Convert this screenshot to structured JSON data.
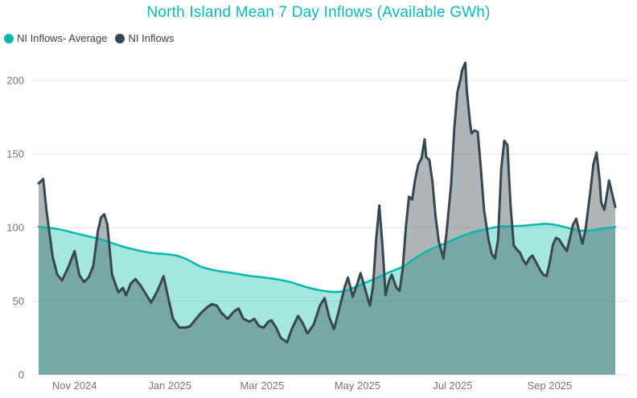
{
  "colors": {
    "title": "#12B6B9",
    "axis_label": "#767676",
    "gridline": "#E6E6E6",
    "legend_text": "#3F3F3F",
    "background": "#FFFFFF"
  },
  "chart_data": {
    "type": "area",
    "title": "North Island Mean 7 Day Inflows (Available GWh)",
    "xlabel": "",
    "ylabel": "",
    "x_unit": "days from chart start (mid-Oct 2024)",
    "x_span_days": 369,
    "ylim": [
      0,
      215
    ],
    "grid": "horizontal",
    "legend_position": "top-left",
    "y_ticks": [
      0,
      50,
      100,
      150,
      200
    ],
    "x_ticks": [
      {
        "label": "Nov 2024",
        "day": 23
      },
      {
        "label": "Jan 2025",
        "day": 84
      },
      {
        "label": "Mar 2025",
        "day": 143
      },
      {
        "label": "May 2025",
        "day": 204
      },
      {
        "label": "Jul 2025",
        "day": 265
      },
      {
        "label": "Sep 2025",
        "day": 327
      }
    ],
    "series": [
      {
        "name": "NI Inflows- Average",
        "color": "#01B8AA",
        "fill": "rgba(1,184,170,0.35)",
        "style": "smooth",
        "points": [
          [
            0,
            100.5
          ],
          [
            11,
            99.5
          ],
          [
            22,
            96.5
          ],
          [
            32,
            94
          ],
          [
            42,
            91.5
          ],
          [
            52,
            87.5
          ],
          [
            63,
            84.5
          ],
          [
            73,
            82.5
          ],
          [
            81,
            82
          ],
          [
            89,
            81
          ],
          [
            96,
            78
          ],
          [
            104,
            73
          ],
          [
            114,
            70.5
          ],
          [
            125,
            69
          ],
          [
            135,
            67
          ],
          [
            145,
            66
          ],
          [
            155,
            64.5
          ],
          [
            163,
            62.5
          ],
          [
            171,
            59.5
          ],
          [
            179,
            57.5
          ],
          [
            186,
            56.3
          ],
          [
            194,
            56.2
          ],
          [
            202,
            59
          ],
          [
            209,
            62.5
          ],
          [
            217,
            66
          ],
          [
            225,
            70
          ],
          [
            233,
            73
          ],
          [
            240,
            78.5
          ],
          [
            248,
            84
          ],
          [
            256,
            87.5
          ],
          [
            264,
            91
          ],
          [
            271,
            94.5
          ],
          [
            279,
            97.3
          ],
          [
            287,
            99
          ],
          [
            294,
            100.7
          ],
          [
            302,
            101
          ],
          [
            310,
            101.2
          ],
          [
            318,
            102
          ],
          [
            325,
            102.8
          ],
          [
            333,
            101.5
          ],
          [
            341,
            99
          ],
          [
            348,
            97.5
          ],
          [
            356,
            98.3
          ],
          [
            362,
            99.5
          ],
          [
            369,
            100.4
          ]
        ]
      },
      {
        "name": "NI Inflows",
        "color": "#37474F",
        "fill": "rgba(55,71,79,0.40)",
        "style": "jagged",
        "points": [
          [
            0,
            130
          ],
          [
            3,
            133
          ],
          [
            5,
            112
          ],
          [
            9,
            80
          ],
          [
            12,
            68
          ],
          [
            15,
            64
          ],
          [
            19,
            73
          ],
          [
            23,
            84
          ],
          [
            26,
            68
          ],
          [
            29,
            63
          ],
          [
            32,
            66
          ],
          [
            35,
            74
          ],
          [
            38,
            98
          ],
          [
            40,
            107
          ],
          [
            42,
            109
          ],
          [
            44,
            102
          ],
          [
            47,
            68
          ],
          [
            51,
            56
          ],
          [
            54,
            59
          ],
          [
            56,
            54
          ],
          [
            59,
            62
          ],
          [
            62,
            65
          ],
          [
            65,
            61
          ],
          [
            68,
            56
          ],
          [
            72,
            49
          ],
          [
            76,
            57
          ],
          [
            80,
            67
          ],
          [
            83,
            52
          ],
          [
            86,
            38
          ],
          [
            90,
            32
          ],
          [
            94,
            32
          ],
          [
            97,
            33
          ],
          [
            100,
            37
          ],
          [
            104,
            42
          ],
          [
            108,
            46
          ],
          [
            111,
            48
          ],
          [
            114,
            47
          ],
          [
            117,
            42
          ],
          [
            121,
            38
          ],
          [
            125,
            43
          ],
          [
            128,
            45
          ],
          [
            131,
            38
          ],
          [
            135,
            36
          ],
          [
            138,
            38
          ],
          [
            141,
            33
          ],
          [
            144,
            32
          ],
          [
            147,
            36
          ],
          [
            149,
            37
          ],
          [
            152,
            32
          ],
          [
            155,
            25
          ],
          [
            159,
            22
          ],
          [
            162,
            31
          ],
          [
            166,
            40
          ],
          [
            169,
            35
          ],
          [
            172,
            28
          ],
          [
            176,
            34
          ],
          [
            180,
            47
          ],
          [
            183,
            52
          ],
          [
            186,
            39
          ],
          [
            189,
            31
          ],
          [
            192,
            43
          ],
          [
            196,
            60
          ],
          [
            198,
            66
          ],
          [
            201,
            53
          ],
          [
            204,
            62
          ],
          [
            206,
            69
          ],
          [
            209,
            58
          ],
          [
            212,
            47
          ],
          [
            214,
            60
          ],
          [
            216,
            92
          ],
          [
            218,
            115
          ],
          [
            220,
            88
          ],
          [
            222,
            54
          ],
          [
            224,
            63
          ],
          [
            226,
            68
          ],
          [
            229,
            59
          ],
          [
            231,
            57
          ],
          [
            233,
            72
          ],
          [
            235,
            100
          ],
          [
            237,
            121
          ],
          [
            239,
            119
          ],
          [
            241,
            133
          ],
          [
            243,
            143
          ],
          [
            245,
            147
          ],
          [
            247,
            160
          ],
          [
            248,
            148
          ],
          [
            250,
            146
          ],
          [
            252,
            131
          ],
          [
            254,
            108
          ],
          [
            256,
            91
          ],
          [
            258,
            83
          ],
          [
            259,
            79
          ],
          [
            261,
            96
          ],
          [
            264,
            130
          ],
          [
            266,
            168
          ],
          [
            268,
            192
          ],
          [
            270,
            201
          ],
          [
            271,
            207
          ],
          [
            273,
            212
          ],
          [
            274,
            193
          ],
          [
            276,
            172
          ],
          [
            277,
            164
          ],
          [
            279,
            166
          ],
          [
            281,
            165
          ],
          [
            283,
            140
          ],
          [
            285,
            112
          ],
          [
            288,
            91
          ],
          [
            290,
            82
          ],
          [
            292,
            79
          ],
          [
            294,
            92
          ],
          [
            296,
            140
          ],
          [
            298,
            159
          ],
          [
            300,
            156
          ],
          [
            302,
            115
          ],
          [
            304,
            88
          ],
          [
            306,
            85
          ],
          [
            308,
            83
          ],
          [
            310,
            78
          ],
          [
            312,
            75
          ],
          [
            314,
            79
          ],
          [
            316,
            81
          ],
          [
            318,
            77
          ],
          [
            321,
            71
          ],
          [
            323,
            68
          ],
          [
            325,
            67
          ],
          [
            327,
            76
          ],
          [
            329,
            88
          ],
          [
            331,
            93
          ],
          [
            333,
            92
          ],
          [
            336,
            87
          ],
          [
            338,
            84
          ],
          [
            340,
            93
          ],
          [
            342,
            102
          ],
          [
            344,
            106
          ],
          [
            346,
            97
          ],
          [
            348,
            89
          ],
          [
            350,
            99
          ],
          [
            353,
            124
          ],
          [
            355,
            143
          ],
          [
            357,
            151
          ],
          [
            359,
            132
          ],
          [
            360,
            117
          ],
          [
            362,
            112
          ],
          [
            364,
            125
          ],
          [
            365,
            132
          ],
          [
            367,
            123
          ],
          [
            369,
            114
          ]
        ]
      }
    ]
  }
}
